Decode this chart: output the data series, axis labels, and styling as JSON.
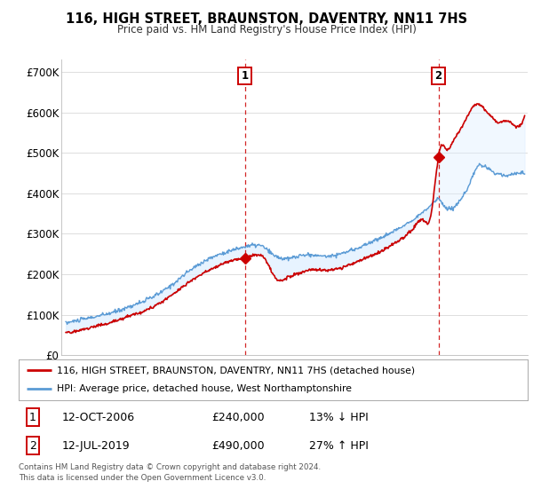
{
  "title": "116, HIGH STREET, BRAUNSTON, DAVENTRY, NN11 7HS",
  "subtitle": "Price paid vs. HM Land Registry's House Price Index (HPI)",
  "ylabel_ticks": [
    "£0",
    "£100K",
    "£200K",
    "£300K",
    "£400K",
    "£500K",
    "£600K",
    "£700K"
  ],
  "ytick_values": [
    0,
    100000,
    200000,
    300000,
    400000,
    500000,
    600000,
    700000
  ],
  "ylim": [
    0,
    730000
  ],
  "xlim_start": 1994.7,
  "xlim_end": 2025.4,
  "sale1": {
    "date_x": 2006.78,
    "price": 240000,
    "label": "1"
  },
  "sale2": {
    "date_x": 2019.53,
    "price": 490000,
    "label": "2"
  },
  "red_color": "#cc0000",
  "blue_color": "#5b9bd5",
  "fill_color": "#ddeeff",
  "annotation_box_color": "#cc0000",
  "legend_label1": "116, HIGH STREET, BRAUNSTON, DAVENTRY, NN11 7HS (detached house)",
  "legend_label2": "HPI: Average price, detached house, West Northamptonshire",
  "table_row1": [
    "1",
    "12-OCT-2006",
    "£240,000",
    "13% ↓ HPI"
  ],
  "table_row2": [
    "2",
    "12-JUL-2019",
    "£490,000",
    "27% ↑ HPI"
  ],
  "footnote": "Contains HM Land Registry data © Crown copyright and database right 2024.\nThis data is licensed under the Open Government Licence v3.0.",
  "background_color": "#ffffff",
  "grid_color": "#d8d8d8",
  "dashed_line_color": "#cc0000"
}
